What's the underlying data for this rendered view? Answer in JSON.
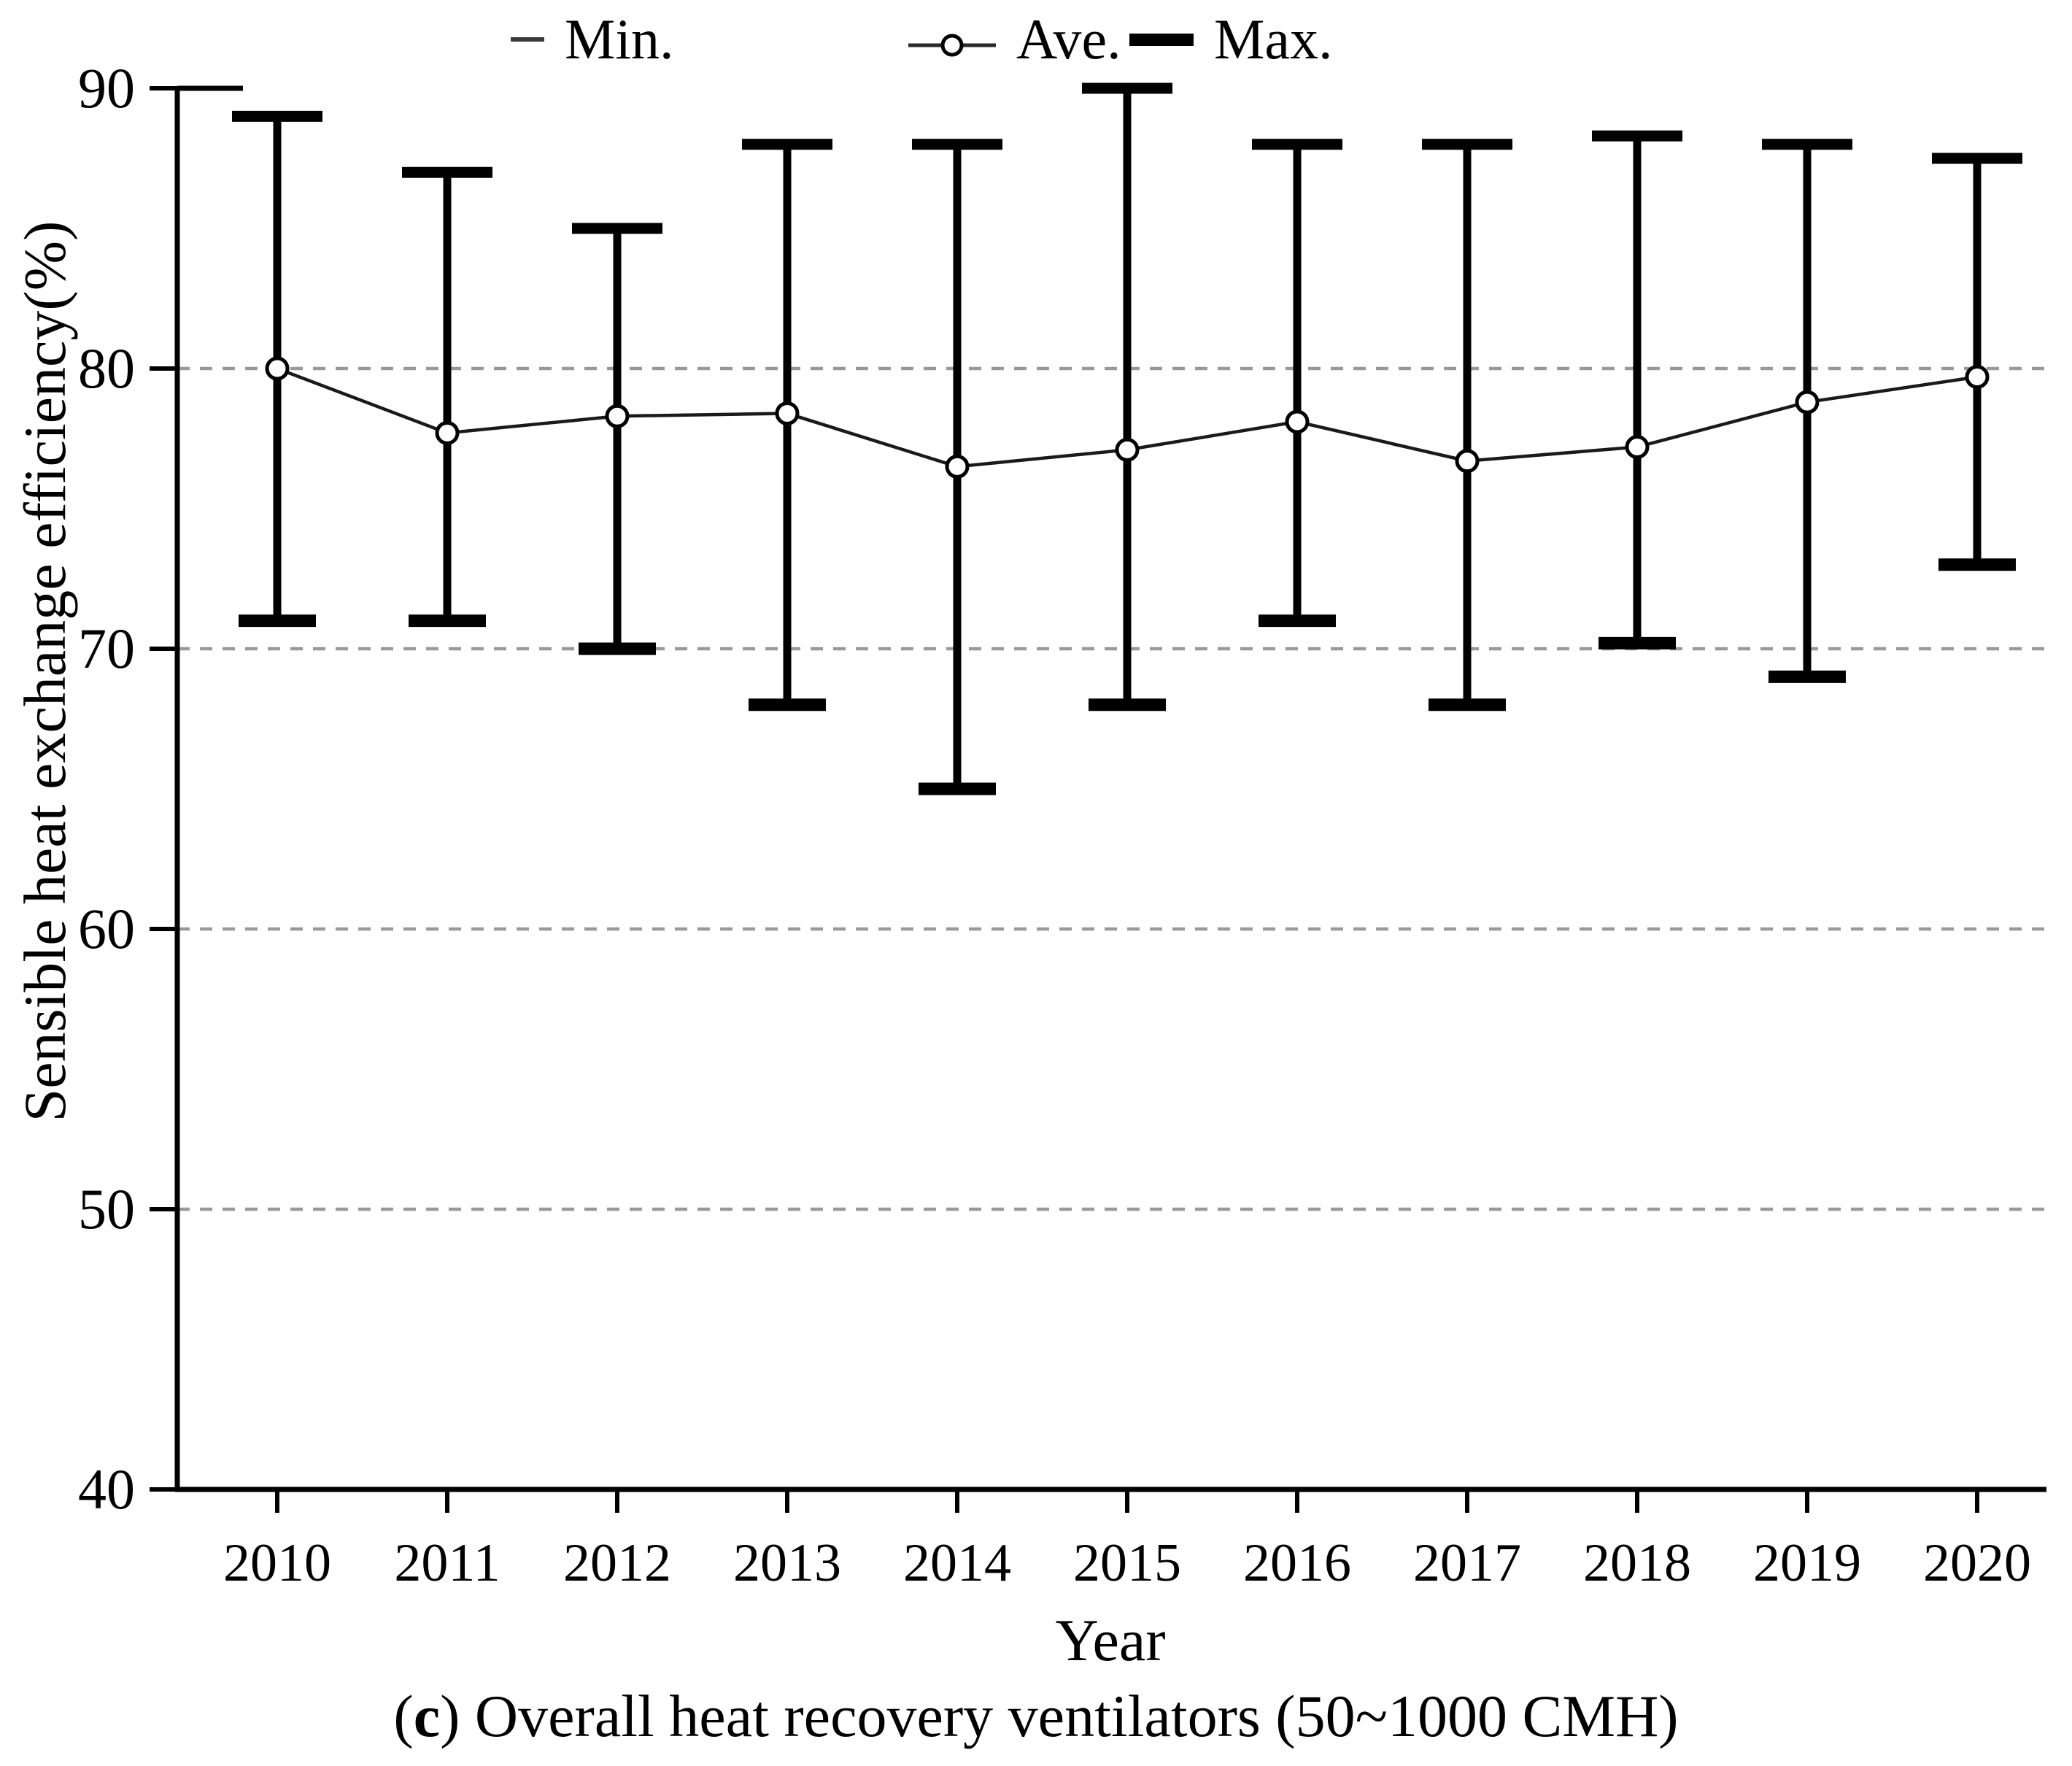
{
  "legend": {
    "items": [
      {
        "label": "Min.",
        "symbol": "min-dash"
      },
      {
        "label": "Ave.",
        "symbol": "ave-line-with-circle"
      },
      {
        "label": "Max.",
        "symbol": "max-thick-bar"
      }
    ]
  },
  "axes": {
    "y_title": "Sensible heat exchange efficiency(%)",
    "x_title": "Year"
  },
  "caption": {
    "prefix": "(",
    "letter": "c",
    "rest": ") Overall heat recovery ventilators (50~1000 CMH)"
  },
  "chart_data": {
    "type": "line",
    "subtype": "error-bar-range-chart",
    "categories": [
      2010,
      2011,
      2012,
      2013,
      2014,
      2015,
      2016,
      2017,
      2018,
      2019,
      2020
    ],
    "series": [
      {
        "name": "Min.",
        "values": [
          71,
          71,
          70,
          68,
          65,
          68,
          71,
          68,
          70.2,
          69,
          73
        ]
      },
      {
        "name": "Ave.",
        "values": [
          80.0,
          77.7,
          78.3,
          78.4,
          76.5,
          77.1,
          78.1,
          76.7,
          77.2,
          78.8,
          79.7
        ]
      },
      {
        "name": "Max.",
        "values": [
          89,
          87,
          85,
          88,
          88,
          90,
          88,
          88,
          88.3,
          88,
          87.5
        ]
      }
    ],
    "title": "",
    "xlabel": "Year",
    "ylabel": "Sensible heat exchange efficiency(%)",
    "ylim": [
      40,
      90
    ],
    "y_ticks": [
      40,
      50,
      60,
      70,
      80,
      90
    ],
    "gridlines": {
      "y_values": [
        50,
        60,
        70,
        80
      ],
      "style": "dashed",
      "color": "#999999"
    },
    "legend_position": "top",
    "colors": {
      "series": "#000000",
      "marker_fill": "#ffffff",
      "grid": "#999999",
      "background": "#ffffff"
    }
  }
}
